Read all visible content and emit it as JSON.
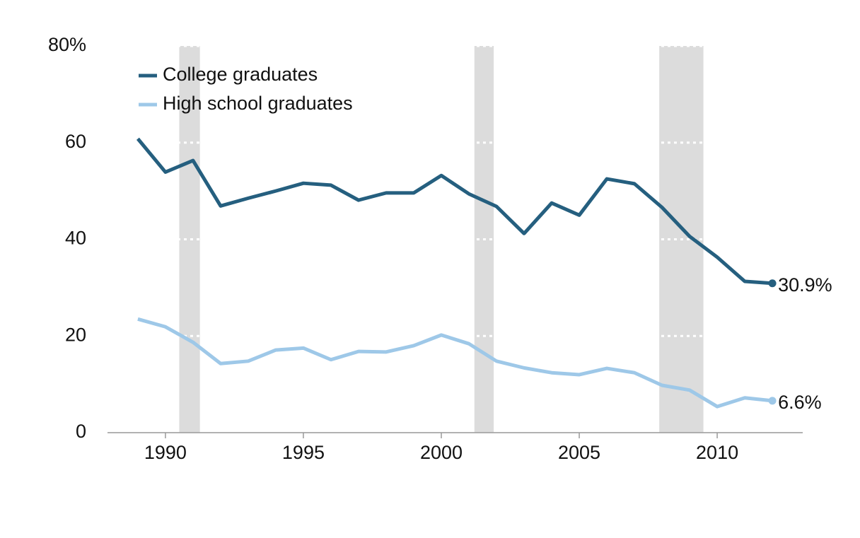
{
  "chart_data": {
    "type": "line",
    "x": [
      1989,
      1990,
      1991,
      1992,
      1993,
      1994,
      1995,
      1996,
      1997,
      1998,
      1999,
      2000,
      2001,
      2002,
      2003,
      2004,
      2005,
      2006,
      2007,
      2008,
      2009,
      2010,
      2011,
      2012
    ],
    "series": [
      {
        "name": "College graduates",
        "color": "#255f7f",
        "values": [
          60.8,
          53.9,
          56.3,
          46.9,
          48.5,
          50.0,
          51.6,
          51.2,
          48.1,
          49.6,
          49.6,
          53.2,
          49.4,
          46.8,
          41.2,
          47.5,
          45.0,
          52.5,
          51.5,
          46.6,
          40.6,
          36.3,
          31.3,
          30.9
        ],
        "value_labels": [
          null,
          null,
          null,
          null,
          null,
          null,
          null,
          null,
          null,
          null,
          null,
          null,
          null,
          null,
          null,
          null,
          null,
          null,
          null,
          null,
          null,
          null,
          null,
          "30.9%"
        ]
      },
      {
        "name": "High school graduates",
        "color": "#9ec8e8",
        "values": [
          23.5,
          21.9,
          18.7,
          14.3,
          14.8,
          17.1,
          17.5,
          15.1,
          16.8,
          16.7,
          18.0,
          20.2,
          18.4,
          14.8,
          13.4,
          12.4,
          12.0,
          13.3,
          12.4,
          9.8,
          8.8,
          5.4,
          7.2,
          6.6
        ],
        "value_labels": [
          null,
          null,
          null,
          null,
          null,
          null,
          null,
          null,
          null,
          null,
          null,
          null,
          null,
          null,
          null,
          null,
          null,
          null,
          null,
          null,
          null,
          null,
          null,
          "6.6%"
        ]
      }
    ],
    "xlim": [
      1987.9,
      2013.1
    ],
    "xticks": [
      1990,
      1995,
      2000,
      2005,
      2010
    ],
    "ylim": [
      0,
      80
    ],
    "yticks": [
      0,
      20,
      40,
      60,
      {
        "value": 80,
        "label": "80%"
      }
    ],
    "shaded_ranges": [
      [
        1990.5,
        1991.25
      ],
      [
        2001.2,
        2001.9
      ],
      [
        2007.9,
        2009.5
      ]
    ],
    "shade_color": "#dcdcdc",
    "grid": true,
    "legend": "top-left"
  }
}
